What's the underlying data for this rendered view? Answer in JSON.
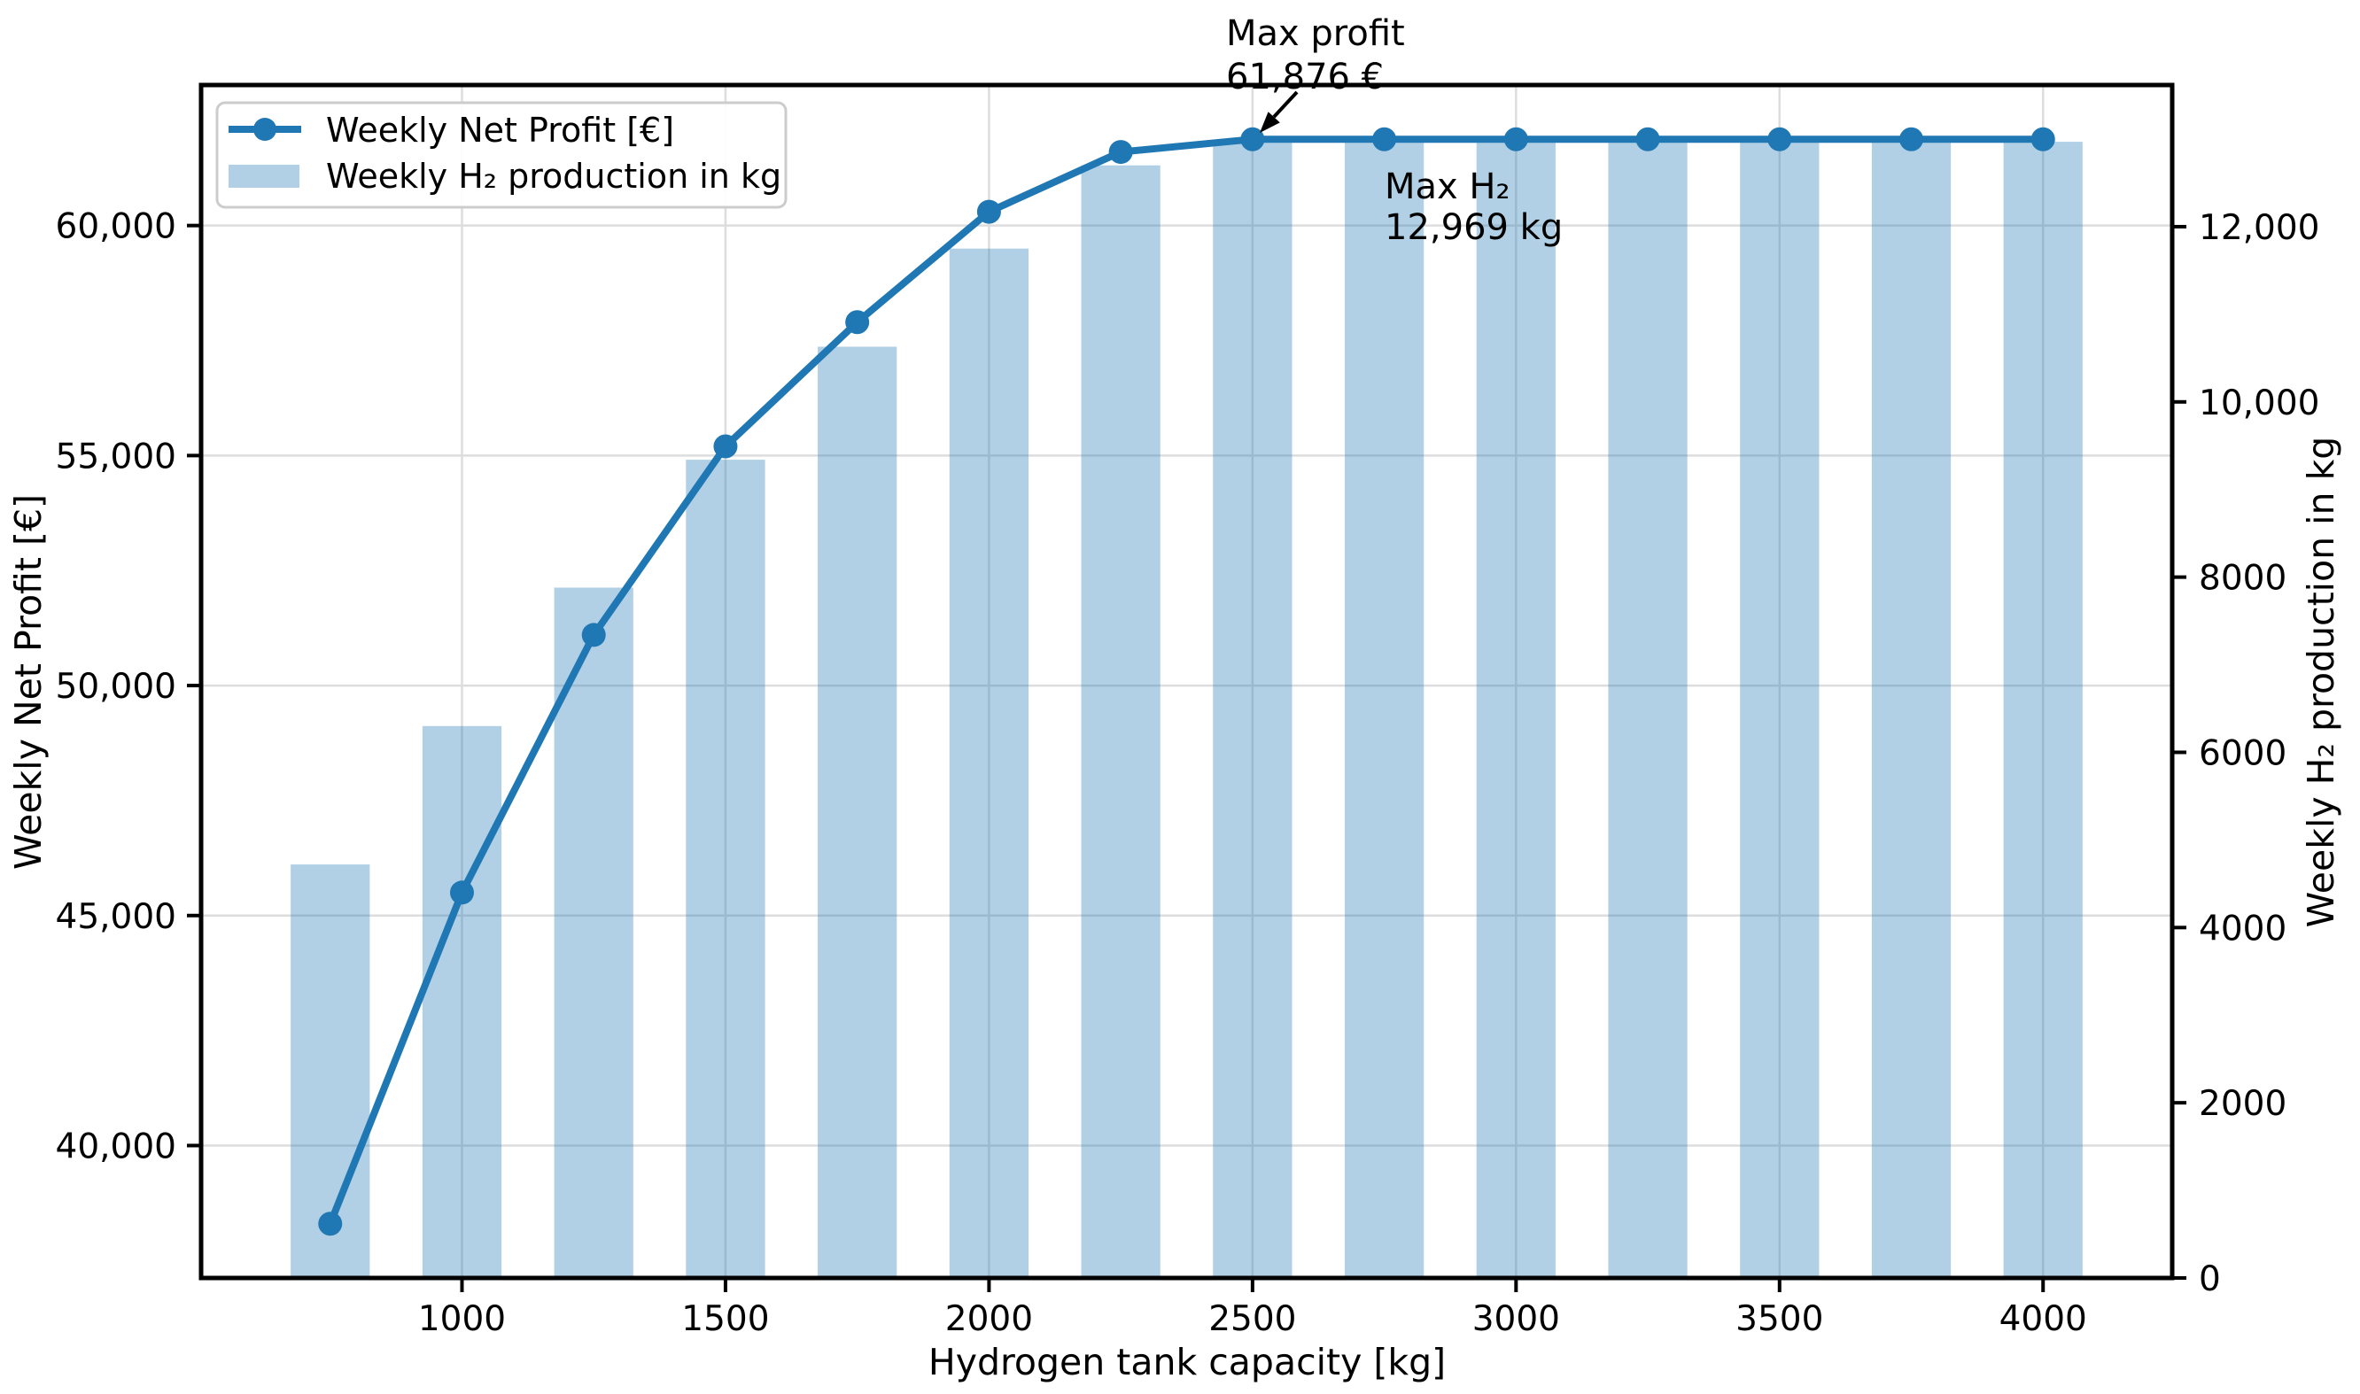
{
  "chart_data": {
    "type": "combo-line-bar",
    "title": "",
    "xlabel": "Hydrogen tank capacity [kg]",
    "ylabel_left": "Weekly Net Profit [€]",
    "ylabel_right": "Weekly H₂ production in kg",
    "x": [
      750,
      1000,
      1250,
      1500,
      1750,
      2000,
      2250,
      2500,
      2750,
      3000,
      3250,
      3500,
      3750,
      4000
    ],
    "series": [
      {
        "name": "Weekly Net Profit [€]",
        "type": "line",
        "axis": "left",
        "color": "#1f77b4",
        "values": [
          38300,
          45500,
          51100,
          55200,
          57900,
          60300,
          61600,
          61876,
          61876,
          61876,
          61876,
          61876,
          61876,
          61876
        ]
      },
      {
        "name": "Weekly H₂ production in kg",
        "type": "bar",
        "axis": "right",
        "color": "#1f77b4",
        "opacity": 0.35,
        "bar_width_x": 150,
        "values": [
          4720,
          6300,
          7880,
          9340,
          10630,
          11750,
          12700,
          12969,
          12969,
          12969,
          12969,
          12969,
          12969,
          12969
        ]
      }
    ],
    "xlim": [
      505,
      4245
    ],
    "ylim_left": [
      37121,
      63055
    ],
    "ylim_right": [
      0,
      13617
    ],
    "xticks": {
      "values": [
        1000,
        1500,
        2000,
        2500,
        3000,
        3500,
        4000
      ],
      "labels": [
        "1000",
        "1500",
        "2000",
        "2500",
        "3000",
        "3500",
        "4000"
      ]
    },
    "yticks_left": {
      "values": [
        40000,
        45000,
        50000,
        55000,
        60000
      ],
      "labels": [
        "40,000",
        "45,000",
        "50,000",
        "55,000",
        "60,000"
      ]
    },
    "yticks_right": {
      "values": [
        0,
        2000,
        4000,
        6000,
        8000,
        10000,
        12000
      ],
      "labels": [
        "0",
        "2000",
        "4000",
        "6000",
        "8000",
        "10,000",
        "12,000"
      ]
    },
    "grid": {
      "vertical_at_xticks": true,
      "horizontal_at_left_yticks": true
    },
    "legend": {
      "position": "upper-left",
      "items": [
        {
          "label": "Weekly Net Profit [€]",
          "marker": "line-dot"
        },
        {
          "label": "Weekly H₂ production in kg",
          "marker": "patch"
        }
      ]
    },
    "annotations": {
      "max_profit": {
        "line1": "Max profit",
        "line2": "61,876 €",
        "points_to_x": 2500
      },
      "max_h2": {
        "line1": "Max H₂",
        "line2": "12,969 kg",
        "near_x": 2750
      }
    },
    "colors": {
      "line": "#1f77b4",
      "bar_fill_base": "#1f77b4",
      "grid": "#dddddd",
      "spine": "#000000",
      "tick": "#000000",
      "legend_border": "#cccccc",
      "legend_bg": "#ffffff",
      "annotation_arrow": "#000000"
    }
  }
}
